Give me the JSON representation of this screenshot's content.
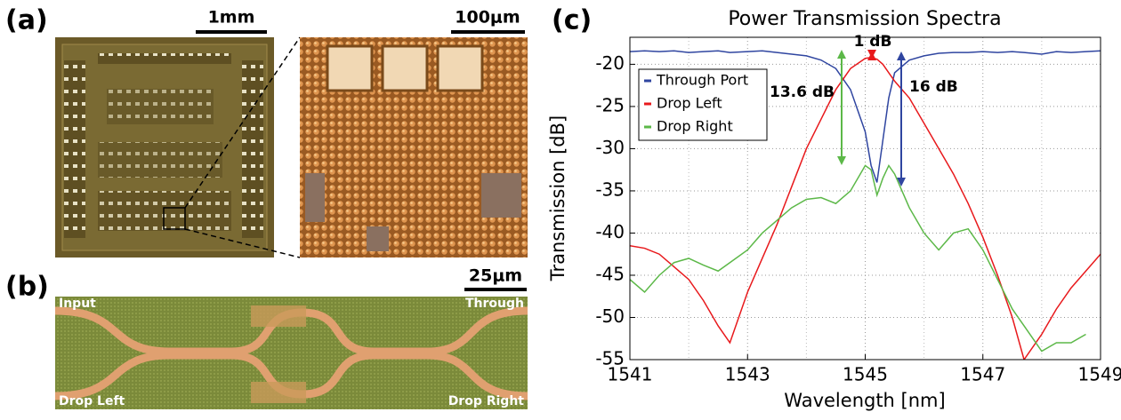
{
  "panels": {
    "a": "(a)",
    "b": "(b)",
    "c": "(c)"
  },
  "scale_bars": {
    "chip": "1mm",
    "zoom": "100μm",
    "waveguide": "25μm"
  },
  "waveguide_labels": {
    "input": "Input",
    "through": "Through",
    "drop_left": "Drop Left",
    "drop_right": "Drop Right"
  },
  "chart_data": {
    "type": "line",
    "title": "Power Transmission Spectra",
    "x_label": "Wavelength [nm]",
    "y_label": "Transmission [dB]",
    "x": [
      1541,
      1541.25,
      1541.5,
      1541.75,
      1542,
      1542.25,
      1542.5,
      1542.7,
      1543,
      1543.25,
      1543.5,
      1543.75,
      1544,
      1544.25,
      1544.5,
      1544.75,
      1545,
      1545.1,
      1545.2,
      1545.3,
      1545.4,
      1545.5,
      1545.75,
      1546,
      1546.25,
      1546.5,
      1546.75,
      1547,
      1547.25,
      1547.5,
      1547.7,
      1548,
      1548.25,
      1548.5,
      1548.75,
      1549
    ],
    "series": [
      {
        "name": "Through Port",
        "color": "#2f45a0",
        "values": [
          -18.5,
          -18.4,
          -18.5,
          -18.4,
          -18.6,
          -18.5,
          -18.4,
          -18.6,
          -18.5,
          -18.4,
          -18.6,
          -18.8,
          -19,
          -19.5,
          -20.5,
          -23,
          -28,
          -32,
          -34,
          -29,
          -24,
          -21,
          -19.5,
          -19,
          -18.7,
          -18.6,
          -18.6,
          -18.5,
          -18.6,
          -18.5,
          -18.6,
          -18.8,
          -18.5,
          -18.6,
          -18.5,
          -18.4
        ]
      },
      {
        "name": "Drop Left",
        "color": "#e8191c",
        "values": [
          -41.5,
          -41.8,
          -42.5,
          -44,
          -45.5,
          -48,
          -51,
          -53,
          -47,
          -43,
          -39,
          -34.5,
          -30,
          -26.5,
          -23,
          -20.5,
          -19.3,
          -19.2,
          -19.4,
          -20,
          -21,
          -22,
          -24,
          -27,
          -30,
          -33,
          -36.5,
          -40.5,
          -45,
          -50,
          -55,
          -52,
          -49,
          -46.5,
          -44.5,
          -42.5
        ]
      },
      {
        "name": "Drop Right",
        "color": "#5cb848",
        "values": [
          -45.5,
          -47,
          -45,
          -43.5,
          -43,
          -43.8,
          -44.5,
          -43.5,
          -42,
          -40,
          -38.5,
          -37,
          -36,
          -35.8,
          -36.5,
          -35,
          -32,
          -32.5,
          -35.5,
          -33.5,
          -32,
          -33,
          -37,
          -40,
          -42,
          -40,
          -39.5,
          -42,
          -45.5,
          -49,
          -51,
          -54,
          -53,
          -53,
          -52,
          null
        ]
      }
    ],
    "xlim": [
      1541,
      1549
    ],
    "ylim": [
      -55,
      -16.8
    ],
    "xticks": [
      1541,
      1543,
      1545,
      1547,
      1549
    ],
    "yticks": [
      -55,
      -50,
      -45,
      -40,
      -35,
      -30,
      -25,
      -20
    ],
    "grid": true,
    "legend": "upper left",
    "annotations": [
      "1 dB",
      "13.6 dB",
      "16 dB"
    ]
  }
}
